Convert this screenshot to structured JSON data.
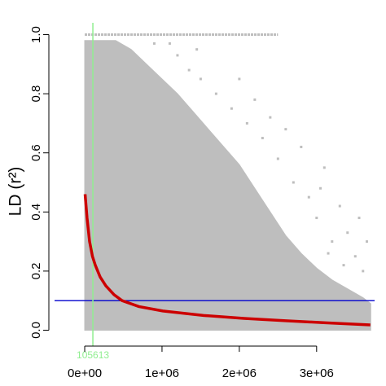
{
  "chart_data": {
    "type": "scatter",
    "y_label": "LD (r²)",
    "xlim": [
      -390000,
      3750000
    ],
    "ylim": [
      -0.04,
      1.04
    ],
    "xticks": [
      {
        "value": 0,
        "label": "0e+00"
      },
      {
        "value": 1000000,
        "label": "1e+06"
      },
      {
        "value": 2000000,
        "label": "2e+06"
      },
      {
        "value": 3000000,
        "label": "3e+06"
      }
    ],
    "yticks": [
      {
        "value": 0,
        "label": "0.0"
      },
      0.2,
      0.4,
      0.6,
      0.8,
      {
        "value": 1,
        "label": "1.0"
      }
    ],
    "cloud": {
      "color": "#bebebe",
      "x": [
        0,
        400000,
        600000,
        800000,
        1000000,
        1200000,
        1400000,
        1600000,
        1800000,
        2000000,
        2200000,
        2400000,
        2600000,
        2800000,
        3000000,
        3200000,
        3400000,
        3600000,
        3700000
      ],
      "values": [
        0.98,
        0.98,
        0.95,
        0.9,
        0.85,
        0.8,
        0.74,
        0.68,
        0.62,
        0.56,
        0.48,
        0.4,
        0.32,
        0.26,
        0.21,
        0.17,
        0.14,
        0.11,
        0.09
      ]
    },
    "top_row": {
      "color": "#bebebe",
      "x": [
        0,
        2500000
      ],
      "values": [
        1.0,
        1.0
      ]
    },
    "points": {
      "color": "#bebebe",
      "x": [
        1200000,
        1350000,
        1500000,
        1450000,
        1700000,
        1900000,
        2100000,
        2300000,
        2200000,
        2500000,
        2700000,
        2900000,
        3000000,
        3100000,
        3200000,
        3300000,
        3400000,
        3500000,
        3600000,
        3650000,
        2800000,
        2600000,
        3050000,
        3350000,
        1100000,
        900000,
        2000000,
        2400000,
        3550000,
        3150000
      ],
      "values": [
        0.93,
        0.88,
        0.85,
        0.95,
        0.8,
        0.75,
        0.7,
        0.65,
        0.78,
        0.58,
        0.5,
        0.45,
        0.38,
        0.55,
        0.3,
        0.42,
        0.33,
        0.25,
        0.2,
        0.3,
        0.62,
        0.68,
        0.48,
        0.22,
        0.97,
        0.97,
        0.85,
        0.72,
        0.38,
        0.26
      ]
    },
    "series": [
      {
        "color": "#cc0000",
        "x": [
          5000,
          30000,
          63000,
          100000,
          137000,
          200000,
          274000,
          380000,
          484000,
          700000,
          1010000,
          1537000,
          2063000,
          2600000,
          3116000,
          3695000
        ],
        "values": [
          0.46,
          0.38,
          0.3,
          0.25,
          0.22,
          0.18,
          0.15,
          0.12,
          0.1,
          0.08,
          0.065,
          0.05,
          0.04,
          0.032,
          0.025,
          0.018
        ]
      }
    ],
    "hline": {
      "value": 0.1,
      "color": "#0000cd"
    },
    "vline": {
      "value": 105613,
      "color": "#90ee90"
    }
  }
}
